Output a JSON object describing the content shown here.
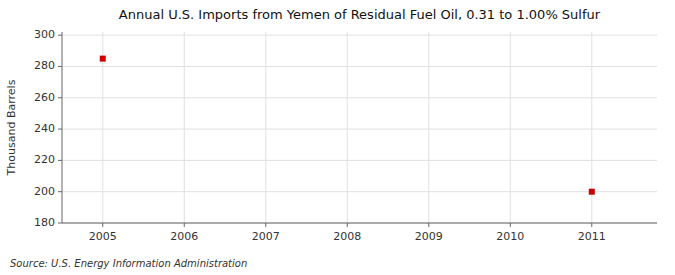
{
  "chart_data": {
    "type": "scatter",
    "title": "Annual U.S. Imports from Yemen of Residual Fuel Oil, 0.31 to 1.00% Sulfur",
    "ylabel": "Thousand Barrels",
    "source": "Source: U.S. Energy Information Administration",
    "x": [
      2005,
      2011
    ],
    "values": [
      285,
      200
    ],
    "xlim": [
      2004.5,
      2011.8
    ],
    "ylim": [
      180,
      302
    ],
    "xticks": [
      2005,
      2006,
      2007,
      2008,
      2009,
      2010,
      2011
    ],
    "yticks": [
      180,
      200,
      220,
      240,
      260,
      280,
      300
    ],
    "grid": true,
    "color": "#cc0000",
    "marker": "square"
  }
}
